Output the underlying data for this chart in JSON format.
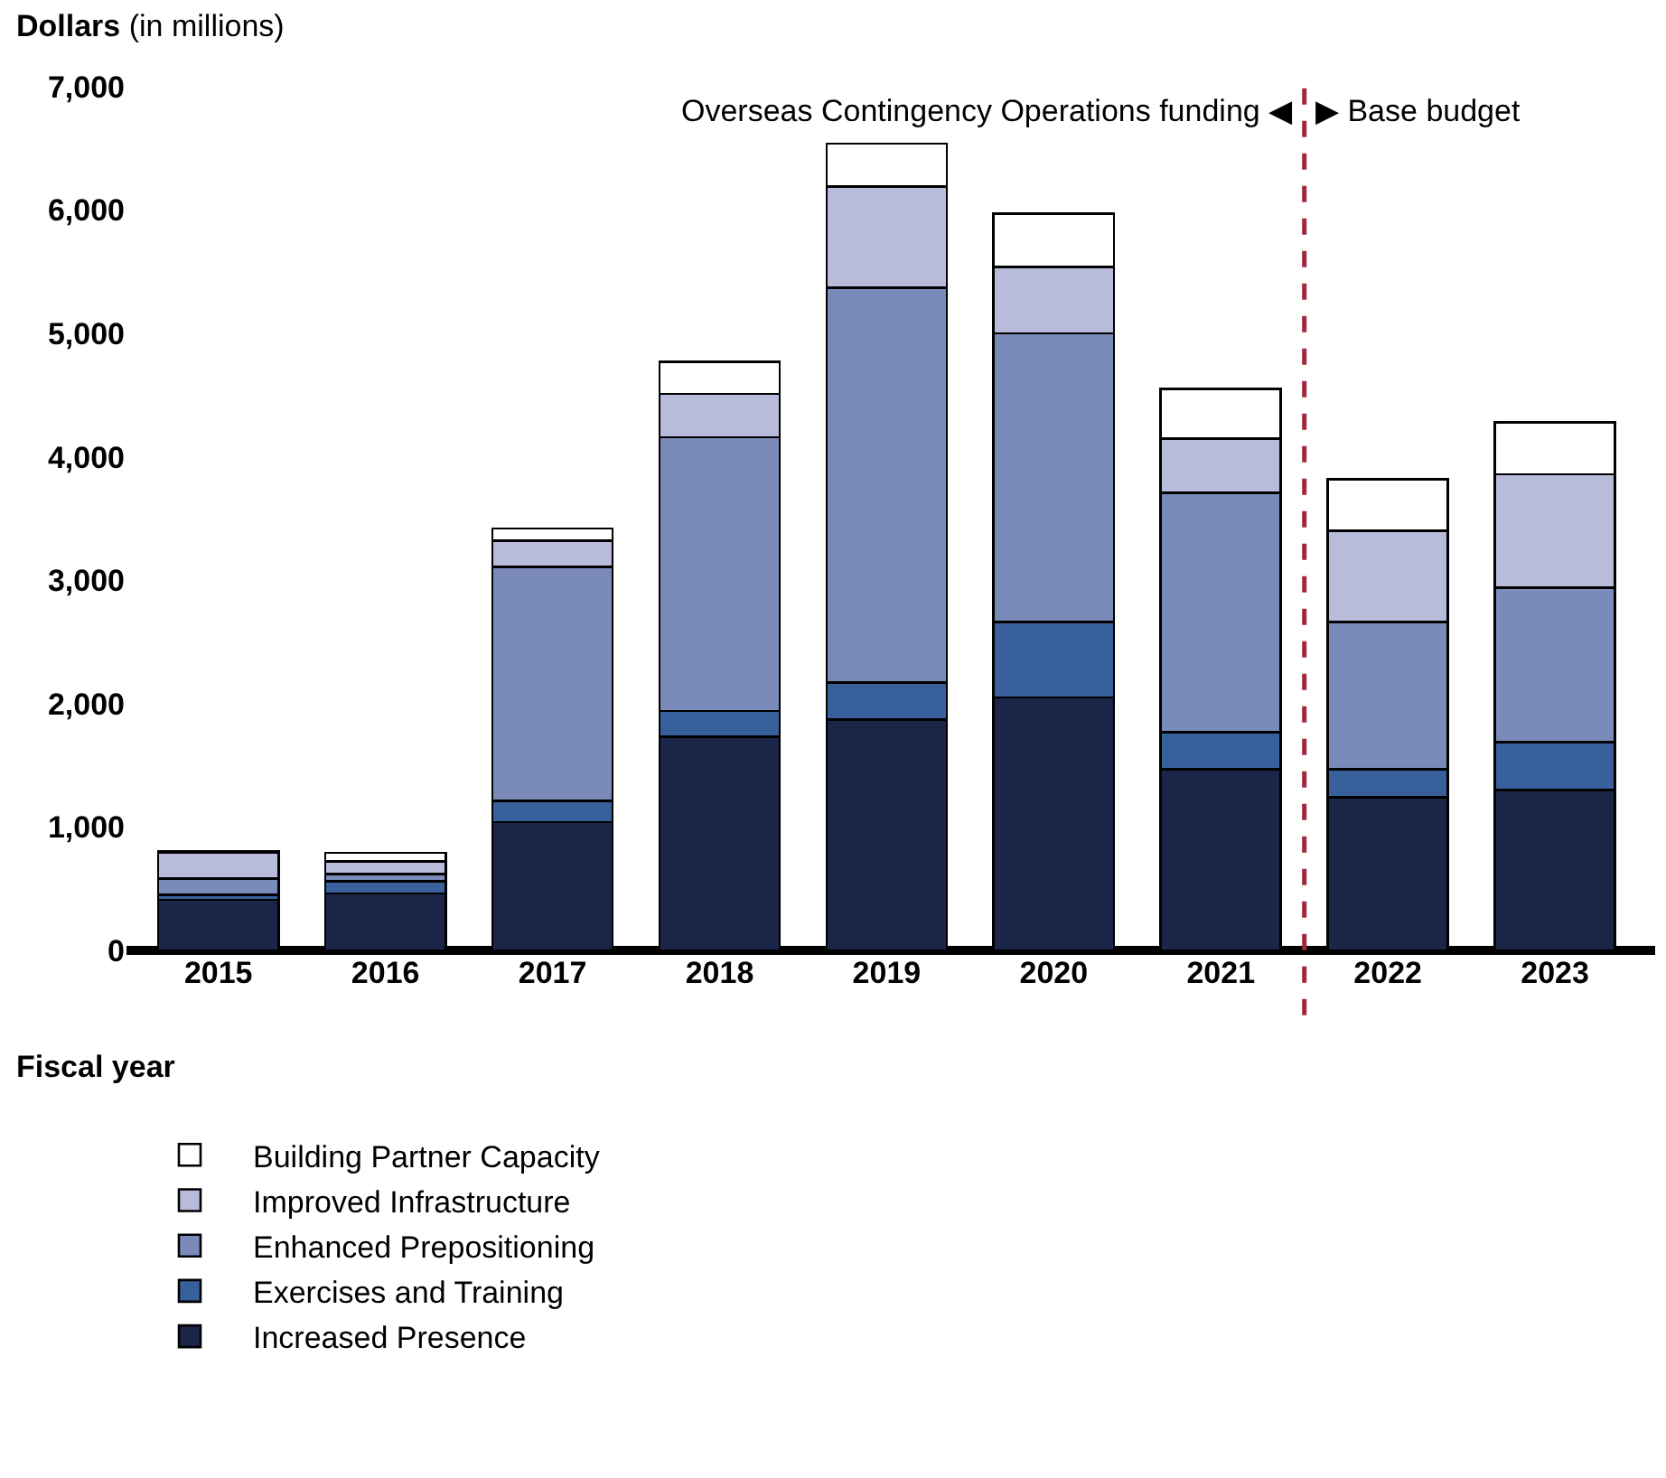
{
  "chart_data": {
    "type": "bar",
    "stacked": true,
    "ylabel": "Dollars (in millions)",
    "xlabel": "Fiscal year",
    "x": [
      2015,
      2016,
      2017,
      2018,
      2019,
      2020,
      2021,
      2022,
      2023
    ],
    "xlim": [
      2014.45,
      2023.6
    ],
    "xticks": [
      2015,
      2016,
      2017,
      2018,
      2019,
      2020,
      2021,
      2022,
      2023
    ],
    "ylim": [
      0,
      7000
    ],
    "yticks": [
      {
        "value": 0,
        "label": "0"
      },
      {
        "value": 1000,
        "label": "1,000"
      },
      {
        "value": 2000,
        "label": "2,000"
      },
      {
        "value": 3000,
        "label": "3,000"
      },
      {
        "value": 4000,
        "label": "4,000"
      },
      {
        "value": 5000,
        "label": "5,000"
      },
      {
        "value": 6000,
        "label": "6,000"
      },
      {
        "value": 7000,
        "label": "7,000"
      }
    ],
    "legend": "bottom left",
    "series": [
      {
        "name": "Increased Presence",
        "color": "#1a2548",
        "values": [
          410,
          460,
          1040,
          1730,
          1870,
          2050,
          1470,
          1240,
          1300
        ]
      },
      {
        "name": "Exercises and Training",
        "color": "#38619c",
        "values": [
          40,
          100,
          170,
          210,
          300,
          610,
          300,
          230,
          390
        ]
      },
      {
        "name": "Enhanced Prepositioning",
        "color": "#7a8bba",
        "values": [
          130,
          60,
          1900,
          2220,
          3200,
          2340,
          1940,
          1190,
          1250
        ]
      },
      {
        "name": "Improved Infrastructure",
        "color": "#b8bcda",
        "values": [
          210,
          100,
          210,
          350,
          820,
          540,
          440,
          740,
          920
        ]
      },
      {
        "name": "Building Partner Capacity",
        "color": "#ffffff",
        "values": [
          10,
          70,
          100,
          260,
          350,
          430,
          400,
          420,
          420
        ]
      }
    ],
    "ref_lines": [
      {
        "axis": "x",
        "value": 2021.5,
        "color": "#a3283e",
        "line_style": "dashed"
      }
    ],
    "annotations": [
      {
        "text": "Overseas Contingency Operations funding ◀",
        "x": 2021.5,
        "y": 6800
      },
      {
        "text": "▶ Base budget",
        "x": 2021.5,
        "y": 6800
      }
    ]
  }
}
